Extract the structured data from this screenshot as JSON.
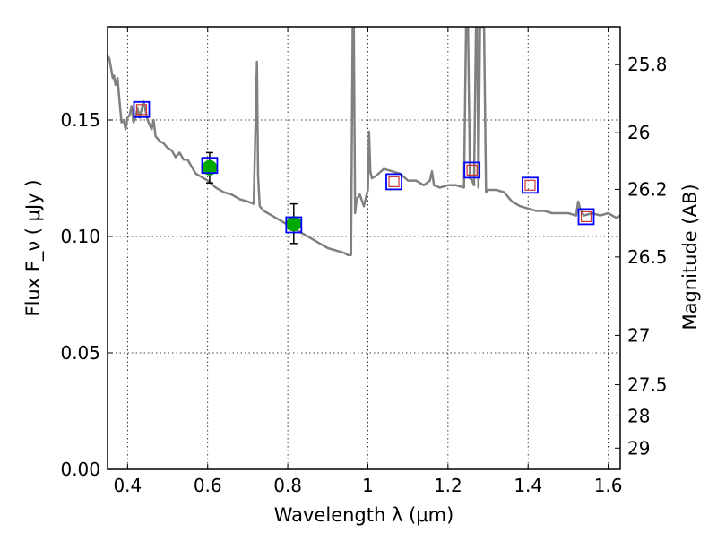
{
  "chart_data": {
    "type": "scatter",
    "title": "",
    "xlabel": "Wavelength  λ (μm)",
    "ylabel": "Flux  F_ν  ( μJy )",
    "y2label": "Magnitude (AB)",
    "xlim": [
      0.35,
      1.63
    ],
    "ylim": [
      0.0,
      0.19
    ],
    "grid": true,
    "grid_style": "dotted",
    "x_ticks": [
      {
        "value": 0.4,
        "label": "0.4"
      },
      {
        "value": 0.6,
        "label": "0.6"
      },
      {
        "value": 0.8,
        "label": "0.8"
      },
      {
        "value": 1.0,
        "label": "1"
      },
      {
        "value": 1.2,
        "label": "1.2"
      },
      {
        "value": 1.4,
        "label": "1.4"
      },
      {
        "value": 1.6,
        "label": "1.6"
      }
    ],
    "y_ticks": [
      {
        "value": 0.0,
        "label": "0.00"
      },
      {
        "value": 0.05,
        "label": "0.05"
      },
      {
        "value": 0.1,
        "label": "0.10"
      },
      {
        "value": 0.15,
        "label": "0.15"
      }
    ],
    "y2_ticks": [
      {
        "mag": 25.8,
        "label": "25.8"
      },
      {
        "mag": 26.0,
        "label": "26"
      },
      {
        "mag": 26.2,
        "label": "26.2"
      },
      {
        "mag": 26.5,
        "label": "26.5"
      },
      {
        "mag": 27.0,
        "label": "27"
      },
      {
        "mag": 27.5,
        "label": "27.5"
      },
      {
        "mag": 28.0,
        "label": "28"
      },
      {
        "mag": 29.0,
        "label": "29"
      }
    ],
    "model_spectrum": {
      "color": "#808080",
      "x": [
        0.35,
        0.355,
        0.36,
        0.363,
        0.366,
        0.37,
        0.375,
        0.38,
        0.385,
        0.39,
        0.395,
        0.4,
        0.405,
        0.41,
        0.415,
        0.42,
        0.425,
        0.43,
        0.44,
        0.45,
        0.46,
        0.465,
        0.47,
        0.48,
        0.49,
        0.5,
        0.51,
        0.52,
        0.53,
        0.54,
        0.55,
        0.56,
        0.57,
        0.58,
        0.59,
        0.6,
        0.62,
        0.64,
        0.66,
        0.68,
        0.7,
        0.715,
        0.72,
        0.723,
        0.726,
        0.73,
        0.74,
        0.76,
        0.78,
        0.8,
        0.82,
        0.84,
        0.86,
        0.88,
        0.9,
        0.92,
        0.94,
        0.95,
        0.958,
        0.962,
        0.965,
        0.968,
        0.972,
        0.98,
        0.99,
        1.0,
        1.003,
        1.006,
        1.01,
        1.02,
        1.04,
        1.06,
        1.08,
        1.1,
        1.12,
        1.14,
        1.155,
        1.16,
        1.165,
        1.18,
        1.2,
        1.22,
        1.24,
        1.245,
        1.25,
        1.255,
        1.26,
        1.265,
        1.27,
        1.273,
        1.276,
        1.28,
        1.29,
        1.295,
        1.3,
        1.31,
        1.32,
        1.34,
        1.36,
        1.38,
        1.4,
        1.42,
        1.44,
        1.46,
        1.48,
        1.5,
        1.52,
        1.525,
        1.53,
        1.535,
        1.54,
        1.56,
        1.58,
        1.6,
        1.62,
        1.63
      ],
      "y": [
        0.178,
        0.176,
        0.171,
        0.168,
        0.169,
        0.165,
        0.168,
        0.158,
        0.149,
        0.15,
        0.146,
        0.151,
        0.152,
        0.156,
        0.149,
        0.151,
        0.155,
        0.151,
        0.158,
        0.15,
        0.146,
        0.15,
        0.143,
        0.141,
        0.14,
        0.138,
        0.137,
        0.134,
        0.136,
        0.133,
        0.133,
        0.13,
        0.127,
        0.126,
        0.125,
        0.124,
        0.121,
        0.119,
        0.118,
        0.116,
        0.115,
        0.114,
        0.152,
        0.175,
        0.126,
        0.113,
        0.111,
        0.109,
        0.107,
        0.105,
        0.103,
        0.101,
        0.099,
        0.097,
        0.095,
        0.094,
        0.093,
        0.092,
        0.092,
        0.19,
        0.19,
        0.11,
        0.116,
        0.118,
        0.113,
        0.12,
        0.145,
        0.128,
        0.125,
        0.126,
        0.129,
        0.128,
        0.127,
        0.124,
        0.124,
        0.122,
        0.124,
        0.128,
        0.122,
        0.121,
        0.122,
        0.122,
        0.121,
        0.19,
        0.19,
        0.125,
        0.124,
        0.122,
        0.19,
        0.19,
        0.121,
        0.19,
        0.19,
        0.119,
        0.12,
        0.12,
        0.12,
        0.119,
        0.115,
        0.113,
        0.112,
        0.111,
        0.111,
        0.11,
        0.11,
        0.11,
        0.109,
        0.115,
        0.112,
        0.11,
        0.109,
        0.11,
        0.109,
        0.11,
        0.108,
        0.109
      ]
    },
    "photometry_observed": [
      {
        "x": 0.605,
        "y": 0.1295,
        "yerr": 0.0065
      },
      {
        "x": 0.815,
        "y": 0.1055,
        "yerr": 0.0085
      }
    ],
    "photometry_observed_style": {
      "marker": "circle",
      "color": "#00aa00",
      "errorbar_color": "#000000"
    },
    "model_photometry": [
      {
        "x": 0.435,
        "y": 0.1545
      },
      {
        "x": 0.605,
        "y": 0.1305
      },
      {
        "x": 0.815,
        "y": 0.105
      },
      {
        "x": 1.065,
        "y": 0.1235
      },
      {
        "x": 1.26,
        "y": 0.1285
      },
      {
        "x": 1.405,
        "y": 0.122
      },
      {
        "x": 1.545,
        "y": 0.1085
      }
    ],
    "model_photometry_style": {
      "marker": "square",
      "color": "#0000ff"
    },
    "upper_limits": [
      {
        "x": 0.435,
        "y": 0.1545
      },
      {
        "x": 1.065,
        "y": 0.1235
      },
      {
        "x": 1.26,
        "y": 0.1285
      },
      {
        "x": 1.405,
        "y": 0.122
      },
      {
        "x": 1.545,
        "y": 0.1085
      }
    ],
    "upper_limits_style": {
      "marker": "small-square",
      "color": "#cc3333"
    }
  }
}
